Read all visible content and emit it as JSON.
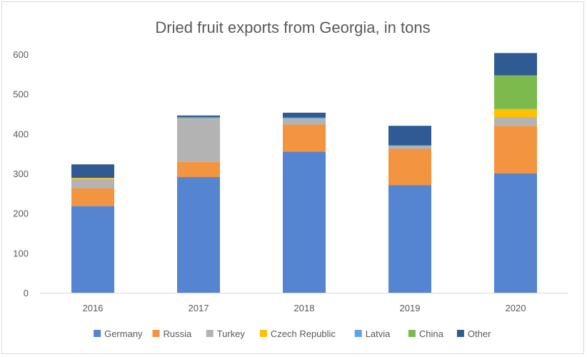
{
  "chart_data": {
    "type": "bar",
    "stacked": true,
    "title": "Dried fruit exports from Georgia, in tons",
    "xlabel": "",
    "ylabel": "",
    "categories": [
      "2016",
      "2017",
      "2018",
      "2019",
      "2020"
    ],
    "ylim": [
      0,
      600
    ],
    "yticks": [
      0,
      100,
      200,
      300,
      400,
      500,
      600
    ],
    "grid": false,
    "legend_position": "bottom",
    "series": [
      {
        "name": "Germany",
        "color": "#5585d1",
        "values": [
          218,
          291,
          355,
          271,
          300
        ]
      },
      {
        "name": "Russia",
        "color": "#f29440",
        "values": [
          45,
          38,
          68,
          91,
          120
        ]
      },
      {
        "name": "Turkey",
        "color": "#b3b3b3",
        "values": [
          23,
          108,
          15,
          7,
          22
        ]
      },
      {
        "name": "Czech Republic",
        "color": "#ffc000",
        "values": [
          3,
          1,
          0,
          0,
          20
        ]
      },
      {
        "name": "Latvia",
        "color": "#5fa2dd",
        "values": [
          0,
          3,
          3,
          1,
          0
        ]
      },
      {
        "name": "China",
        "color": "#7dba4e",
        "values": [
          0,
          1,
          0,
          1,
          85
        ]
      },
      {
        "name": "Other",
        "color": "#2f5a93",
        "values": [
          34,
          4,
          12,
          49,
          56
        ]
      }
    ]
  }
}
